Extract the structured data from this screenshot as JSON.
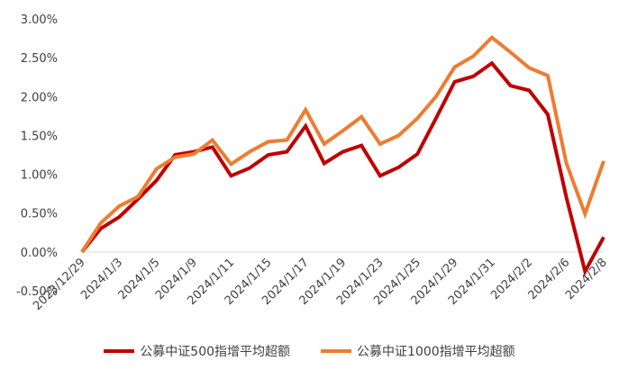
{
  "chart_data": {
    "type": "line",
    "x": [
      "2023/12/29",
      "2024/1/2",
      "2024/1/3",
      "2024/1/4",
      "2024/1/5",
      "2024/1/8",
      "2024/1/9",
      "2024/1/10",
      "2024/1/11",
      "2024/1/12",
      "2024/1/15",
      "2024/1/16",
      "2024/1/17",
      "2024/1/18",
      "2024/1/19",
      "2024/1/22",
      "2024/1/23",
      "2024/1/24",
      "2024/1/25",
      "2024/1/26",
      "2024/1/29",
      "2024/1/30",
      "2024/1/31",
      "2024/2/1",
      "2024/2/2",
      "2024/2/5",
      "2024/2/6",
      "2024/2/7",
      "2024/2/8"
    ],
    "x_tick_labels": [
      "2023/12/29",
      "2024/1/3",
      "2024/1/5",
      "2024/1/9",
      "2024/1/11",
      "2024/1/15",
      "2024/1/17",
      "2024/1/19",
      "2024/1/23",
      "2024/1/25",
      "2024/1/29",
      "2024/1/31",
      "2024/2/2",
      "2024/2/6",
      "2024/2/8"
    ],
    "series": [
      {
        "name": "公募中证500指增平均超额",
        "color": "#C00000",
        "values": [
          0.0,
          0.3,
          0.45,
          0.68,
          0.92,
          1.25,
          1.29,
          1.35,
          0.98,
          1.08,
          1.25,
          1.29,
          1.62,
          1.14,
          1.29,
          1.37,
          0.98,
          1.09,
          1.26,
          1.72,
          2.19,
          2.26,
          2.43,
          2.14,
          2.08,
          1.77,
          0.7,
          -0.25,
          0.19
        ]
      },
      {
        "name": "公募中证1000指增平均超额",
        "color": "#ED7D31",
        "values": [
          0.0,
          0.37,
          0.59,
          0.71,
          1.07,
          1.22,
          1.26,
          1.44,
          1.13,
          1.29,
          1.42,
          1.44,
          1.83,
          1.39,
          1.56,
          1.74,
          1.39,
          1.5,
          1.72,
          2.0,
          2.38,
          2.52,
          2.76,
          2.57,
          2.37,
          2.27,
          1.14,
          0.49,
          1.17
        ]
      }
    ],
    "y_tick_labels": [
      "-0.50%",
      "0.00%",
      "0.50%",
      "1.00%",
      "1.50%",
      "2.00%",
      "2.50%",
      "3.00%"
    ],
    "ylim": [
      -0.5,
      3.0
    ],
    "grid": false,
    "legend_position": "bottom"
  }
}
